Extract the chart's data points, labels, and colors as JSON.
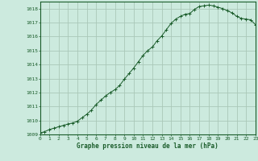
{
  "title": "Graphe pression niveau de la mer (hPa)",
  "background_color": "#cceade",
  "grid_color": "#aac8b8",
  "line_color": "#1a5c2a",
  "marker_color": "#1a5c2a",
  "xlim": [
    0,
    23
  ],
  "ylim": [
    1009,
    1018.5
  ],
  "yticks": [
    1009,
    1010,
    1011,
    1012,
    1013,
    1014,
    1015,
    1016,
    1017,
    1018
  ],
  "xticks": [
    0,
    1,
    2,
    3,
    4,
    5,
    6,
    7,
    8,
    9,
    10,
    11,
    12,
    13,
    14,
    15,
    16,
    17,
    18,
    19,
    20,
    21,
    22,
    23
  ],
  "hours": [
    0,
    0.5,
    1,
    1.5,
    2,
    2.5,
    3,
    3.5,
    4,
    4.5,
    5,
    5.5,
    6,
    6.5,
    7,
    7.5,
    8,
    8.5,
    9,
    9.5,
    10,
    10.5,
    11,
    11.5,
    12,
    12.5,
    13,
    13.5,
    14,
    14.5,
    15,
    15.5,
    16,
    16.5,
    17,
    17.5,
    18,
    18.5,
    19,
    19.5,
    20,
    20.5,
    21,
    21.5,
    22,
    22.5,
    23
  ],
  "pressure": [
    1009.1,
    1009.2,
    1009.35,
    1009.45,
    1009.55,
    1009.65,
    1009.75,
    1009.82,
    1009.95,
    1010.2,
    1010.45,
    1010.75,
    1011.15,
    1011.45,
    1011.75,
    1012.0,
    1012.2,
    1012.5,
    1012.95,
    1013.35,
    1013.75,
    1014.2,
    1014.65,
    1015.0,
    1015.25,
    1015.7,
    1016.05,
    1016.5,
    1016.95,
    1017.25,
    1017.45,
    1017.6,
    1017.65,
    1017.95,
    1018.15,
    1018.2,
    1018.25,
    1018.2,
    1018.1,
    1018.0,
    1017.85,
    1017.7,
    1017.45,
    1017.3,
    1017.25,
    1017.2,
    1016.85
  ]
}
